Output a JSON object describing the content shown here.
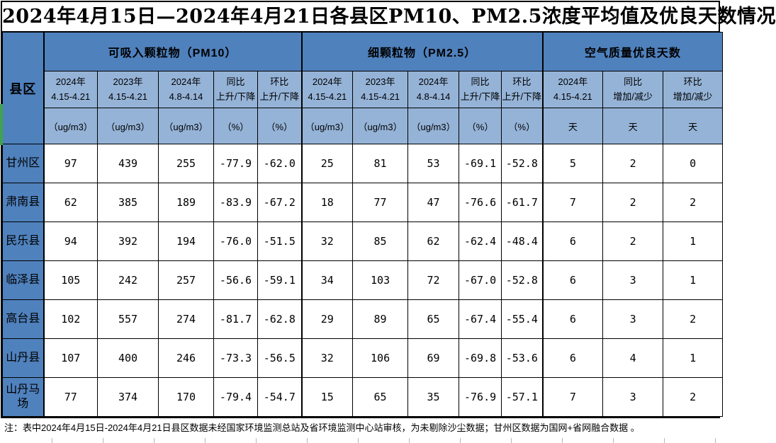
{
  "title": "2024年4月15日—2024年4月21日各县区PM10、PM2.5浓度平均值及优良天数情况",
  "table": {
    "corner": "县区",
    "groups": [
      {
        "label": "可吸入颗粒物（PM10）",
        "columns": [
          {
            "line1": "2024年",
            "line2": "4.15-4.21",
            "unit": "（ug/m3）"
          },
          {
            "line1": "2023年",
            "line2": "4.15-4.21",
            "unit": "（ug/m3）"
          },
          {
            "line1": "2024年",
            "line2": "4.8-4.14",
            "unit": "（ug/m3）"
          },
          {
            "line1": "同比",
            "line2": "上升/下降",
            "unit": "（%）"
          },
          {
            "line1": "环比",
            "line2": "上升/下降",
            "unit": "（%）"
          }
        ]
      },
      {
        "label": "细颗粒物（PM2.5）",
        "columns": [
          {
            "line1": "2024年",
            "line2": "4.15-4.21",
            "unit": "（ug/m3）"
          },
          {
            "line1": "2023年",
            "line2": "4.15-4.21",
            "unit": "（ug/m3）"
          },
          {
            "line1": "2024年",
            "line2": "4.8-4.14",
            "unit": "（ug/m3）"
          },
          {
            "line1": "同比",
            "line2": "上升/下降",
            "unit": "（%）"
          },
          {
            "line1": "环比",
            "line2": "上升/下降",
            "unit": "（%）"
          }
        ]
      },
      {
        "label": "空气质量优良天数",
        "columns": [
          {
            "line1": "2024年",
            "line2": "4.15-4.21",
            "unit": "天"
          },
          {
            "line1": "同比",
            "line2": "增加/减少",
            "unit": "天"
          },
          {
            "line1": "环比",
            "line2": "增加/减少",
            "unit": "天"
          }
        ]
      }
    ],
    "rows": [
      {
        "name": "甘州区",
        "values": [
          "97",
          "439",
          "255",
          "-77.9",
          "-62.0",
          "25",
          "81",
          "53",
          "-69.1",
          "-52.8",
          "5",
          "2",
          "0"
        ]
      },
      {
        "name": "肃南县",
        "values": [
          "62",
          "385",
          "189",
          "-83.9",
          "-67.2",
          "18",
          "77",
          "47",
          "-76.6",
          "-61.7",
          "7",
          "2",
          "2"
        ]
      },
      {
        "name": "民乐县",
        "values": [
          "94",
          "392",
          "194",
          "-76.0",
          "-51.5",
          "32",
          "85",
          "62",
          "-62.4",
          "-48.4",
          "6",
          "2",
          "1"
        ]
      },
      {
        "name": "临泽县",
        "values": [
          "105",
          "242",
          "257",
          "-56.6",
          "-59.1",
          "34",
          "103",
          "72",
          "-67.0",
          "-52.8",
          "6",
          "3",
          "1"
        ]
      },
      {
        "name": "高台县",
        "values": [
          "102",
          "557",
          "274",
          "-81.7",
          "-62.8",
          "29",
          "89",
          "65",
          "-67.4",
          "-55.4",
          "6",
          "3",
          "2"
        ]
      },
      {
        "name": "山丹县",
        "values": [
          "107",
          "400",
          "246",
          "-73.3",
          "-56.5",
          "32",
          "106",
          "69",
          "-69.8",
          "-53.6",
          "6",
          "4",
          "1"
        ]
      },
      {
        "name": "山丹马场",
        "values": [
          "77",
          "374",
          "170",
          "-79.4",
          "-54.7",
          "15",
          "65",
          "35",
          "-76.9",
          "-57.1",
          "7",
          "3",
          "2"
        ]
      }
    ]
  },
  "note": "注：表中2024年4月15日-2024年4月21日县区数据未经国家环境监测总站及省环境监测中心站审核，为未剔除沙尘数据；甘州区数据为国网+省网融合数据 。",
  "colors": {
    "header_dark_blue": "#4f81bd",
    "header_light_blue": "#95b3d7",
    "accent_green": "#3fa34d",
    "border": "#000000"
  }
}
